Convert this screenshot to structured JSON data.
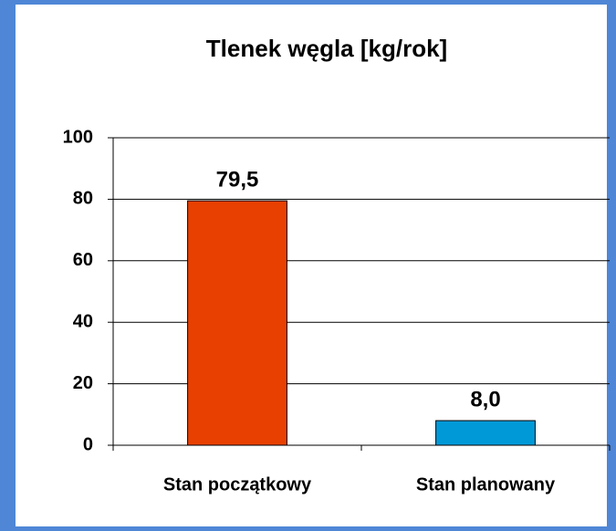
{
  "chart_data": {
    "type": "bar",
    "title": "Tlenek węgla [kg/rok]",
    "categories": [
      "Stan początkowy",
      "Stan planowany"
    ],
    "values": [
      79.5,
      8.0
    ],
    "value_labels": [
      "79,5",
      "8,0"
    ],
    "colors": [
      "#e84000",
      "#0099d8"
    ],
    "ylim": [
      0,
      100
    ],
    "yticks": [
      0,
      20,
      40,
      60,
      80,
      100
    ],
    "grid": true
  }
}
